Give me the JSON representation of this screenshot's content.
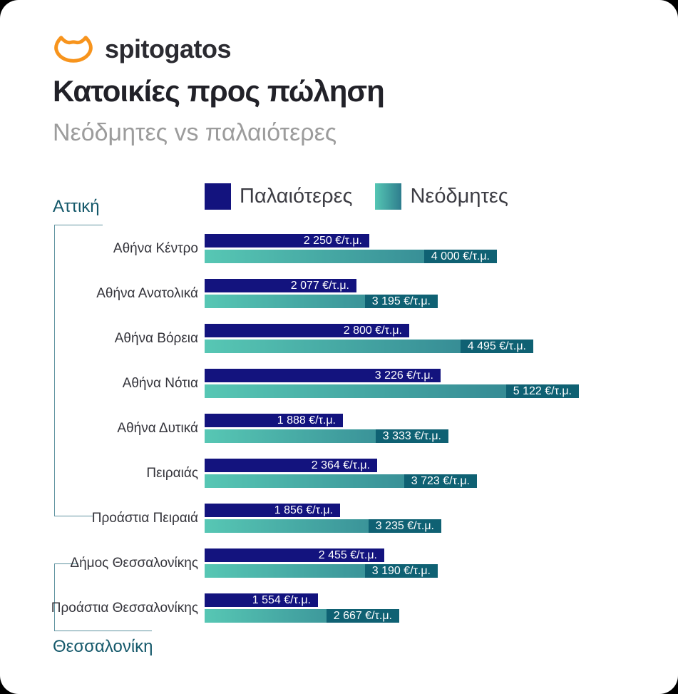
{
  "page": {
    "brand": "spitogatos",
    "title": "Κατοικίες προς πώληση",
    "subtitle": "Νεόδμητες vs παλαιότερες"
  },
  "legend": {
    "old_label": "Παλαιότερες",
    "new_label": "Νεόδμητες"
  },
  "groups": {
    "attiki": "Αττική",
    "thessaloniki": "Θεσσαλονίκη"
  },
  "colors": {
    "brand_orange": "#F7941D",
    "navy_bar": "#13137E",
    "teal_gradient_start": "#57C7B4",
    "teal_gradient_end": "#2E7D8D",
    "teal_value_chip": "#0F6173",
    "bracket_line": "#5F93A0",
    "group_label_teal": "#14586A"
  },
  "chart_data": {
    "type": "bar",
    "orientation": "horizontal",
    "title": "Κατοικίες προς πώληση",
    "subtitle": "Νεόδμητες vs παλαιότερες",
    "unit": "€/τ.μ.",
    "max_value": 5122,
    "legend_position": "top",
    "series_names": [
      "Παλαιότερες",
      "Νεόδμητες"
    ],
    "group_spans": [
      {
        "name": "Αττική",
        "row_indexes": [
          0,
          1,
          2,
          3,
          4,
          5,
          6
        ]
      },
      {
        "name": "Θεσσαλονίκη",
        "row_indexes": [
          7,
          8
        ]
      }
    ],
    "rows": [
      {
        "label": "Αθήνα Κέντρο",
        "old": 2250,
        "new": 4000,
        "old_label": "2 250 €/τ.μ.",
        "new_label": "4 000 €/τ.μ."
      },
      {
        "label": "Αθήνα Ανατολικά",
        "old": 2077,
        "new": 3195,
        "old_label": "2 077 €/τ.μ.",
        "new_label": "3 195 €/τ.μ."
      },
      {
        "label": "Αθήνα Βόρεια",
        "old": 2800,
        "new": 4495,
        "old_label": "2 800 €/τ.μ.",
        "new_label": "4 495 €/τ.μ."
      },
      {
        "label": "Αθήνα Νότια",
        "old": 3226,
        "new": 5122,
        "old_label": "3 226 €/τ.μ.",
        "new_label": "5 122 €/τ.μ."
      },
      {
        "label": "Αθήνα Δυτικά",
        "old": 1888,
        "new": 3333,
        "old_label": "1 888 €/τ.μ.",
        "new_label": "3 333 €/τ.μ."
      },
      {
        "label": "Πειραιάς",
        "old": 2364,
        "new": 3723,
        "old_label": "2 364 €/τ.μ.",
        "new_label": "3 723 €/τ.μ."
      },
      {
        "label": "Προάστια Πειραιά",
        "old": 1856,
        "new": 3235,
        "old_label": "1 856 €/τ.μ.",
        "new_label": "3 235 €/τ.μ."
      },
      {
        "label": "Δήμος Θεσσαλονίκης",
        "old": 2455,
        "new": 3190,
        "old_label": "2 455 €/τ.μ.",
        "new_label": "3 190 €/τ.μ."
      },
      {
        "label": "Προάστια Θεσσαλονίκης",
        "old": 1554,
        "new": 2667,
        "old_label": "1 554 €/τ.μ.",
        "new_label": "2 667 €/τ.μ."
      }
    ]
  }
}
